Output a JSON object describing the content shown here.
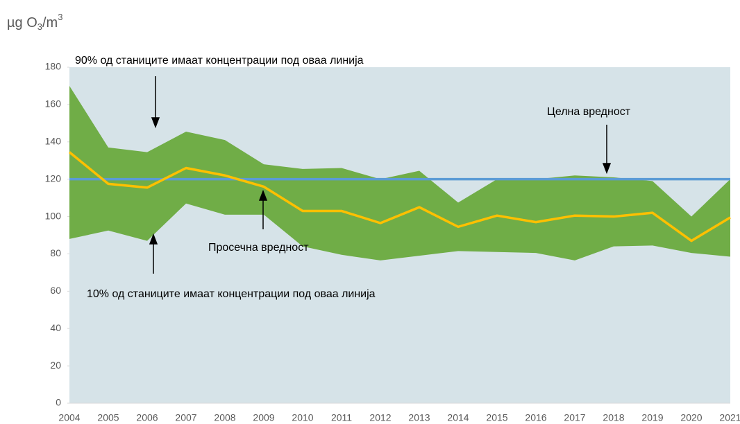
{
  "chart_data": {
    "type": "line",
    "y_label": {
      "main": "µg O",
      "sub": "3",
      "mid": "/m",
      "sup": "3"
    },
    "categories": [
      "2004",
      "2005",
      "2006",
      "2007",
      "2008",
      "2009",
      "2010",
      "2011",
      "2012",
      "2013",
      "2014",
      "2015",
      "2016",
      "2017",
      "2018",
      "2019",
      "2020",
      "2021"
    ],
    "ylim": [
      0,
      180
    ],
    "yticks": [
      0,
      20,
      40,
      60,
      80,
      100,
      120,
      140,
      160,
      180
    ],
    "series": [
      {
        "name": "90% од станиците имаат концентрации под оваа линија",
        "role": "band-upper",
        "color": "#70ad47",
        "values": [
          170,
          137,
          134.5,
          145.5,
          141,
          128,
          125.5,
          126,
          120,
          124.5,
          107.5,
          120,
          120,
          122,
          121,
          119,
          100,
          120
        ]
      },
      {
        "name": "10% од станиците имаат концентрации под оваа линија",
        "role": "band-lower",
        "color": "#d6e3e8",
        "values": [
          88,
          92.5,
          87,
          107,
          101,
          101,
          84,
          79.5,
          76.5,
          79,
          81.5,
          81,
          80.5,
          76.5,
          84,
          84.5,
          80.5,
          78.5
        ]
      },
      {
        "name": "Целна вредност",
        "role": "line",
        "color": "#5b9bd5",
        "values": [
          120,
          120,
          120,
          120,
          120,
          120,
          120,
          120,
          120,
          120,
          120,
          120,
          120,
          120,
          120,
          120,
          120,
          120
        ]
      },
      {
        "name": "Просечна вредност",
        "role": "line",
        "color": "#ffc000",
        "values": [
          134.5,
          117.5,
          115.5,
          126,
          122,
          116,
          103,
          103,
          96.5,
          105,
          94.5,
          100.5,
          97,
          100.5,
          100,
          102,
          87,
          99.5
        ]
      }
    ]
  }
}
